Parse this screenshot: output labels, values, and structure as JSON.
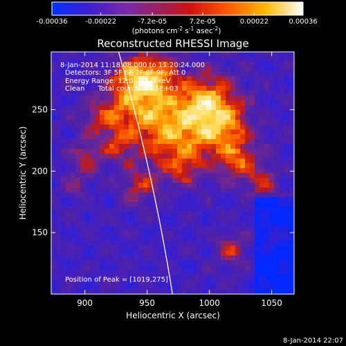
{
  "chart_data": {
    "type": "heatmap",
    "title": "Reconstructed RHESSI Image",
    "xlabel": "Heliocentric X (arcsec)",
    "ylabel": "Heliocentric Y (arcsec)",
    "xlim": [
      873,
      1068
    ],
    "ylim": [
      100,
      297
    ],
    "x_ticks": [
      900,
      950,
      1000,
      1050
    ],
    "y_ticks": [
      150,
      200,
      250
    ],
    "colorbar": {
      "units_label": "(photons cm",
      "units_exp1": "-2",
      "units_mid": " s",
      "units_exp2": "-1",
      "units_mid2": " asec",
      "units_exp3": "-2",
      "units_end": ")",
      "ticks": [
        "-0.00036",
        "-0.00022",
        "-7.2e-05",
        "7.2e-05",
        "0.00022",
        "0.00036"
      ],
      "tick_values": [
        -0.00036,
        -0.00022,
        -7.2e-05,
        7.2e-05,
        0.00022,
        0.00036
      ],
      "range": [
        -0.00036,
        0.00036
      ],
      "colors": [
        "#0033ff",
        "#3a1fd0",
        "#7a2aa8",
        "#c01818",
        "#ff3a00",
        "#ff9a00",
        "#ffd84a",
        "#ffffff"
      ]
    },
    "annotations": {
      "time_range": "8-Jan-2014 11:18:08.000 to 11:20:24.000",
      "detectors": "Detectors: 3F 5F 6F 7F 8F 9F, Att 0",
      "energy": "Energy Range: 12.0 - 25.0 keV",
      "method": "Clean      Total counts: 4.05E+03",
      "peak": "Position of Peak = [1019,275]"
    },
    "peak_position": [
      1019,
      275
    ],
    "footer_timestamp": "8-Jan-2014 22:07",
    "limb": true
  }
}
